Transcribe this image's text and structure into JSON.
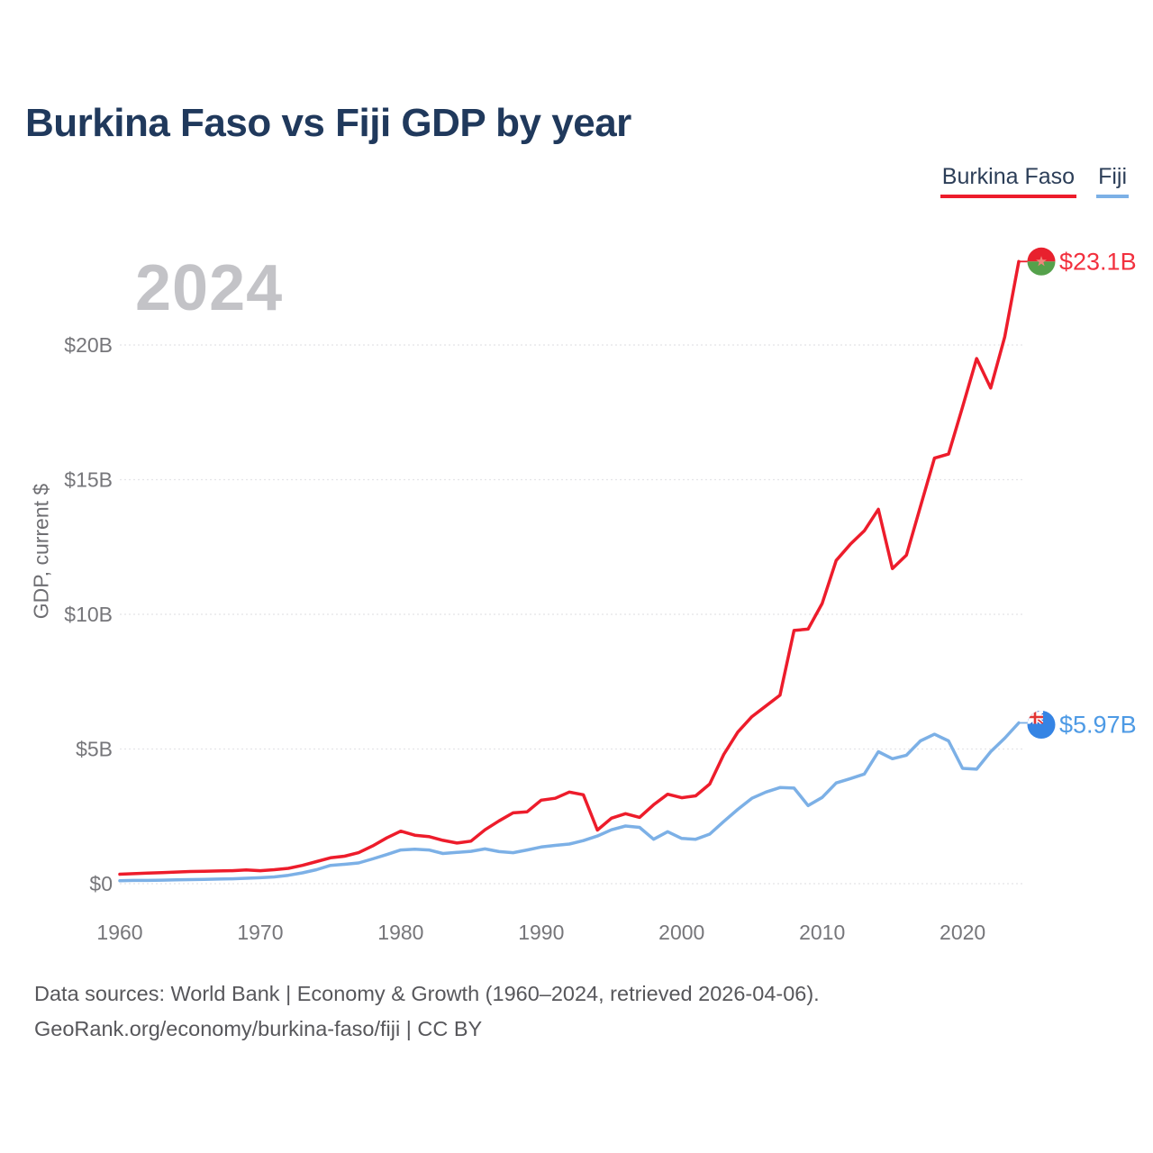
{
  "page": {
    "title": "Burkina Faso vs Fiji GDP by year",
    "footer": {
      "line1": "Data sources: World Bank | Economy & Growth (1960–2024, retrieved 2026-04-06).",
      "line2": "GeoRank.org/economy/burkina-faso/fiji | CC BY"
    }
  },
  "legend": {
    "items": [
      {
        "label": "Burkina Faso",
        "color": "#ed1c2b"
      },
      {
        "label": "Fiji",
        "color": "#7cb0e6"
      }
    ]
  },
  "chart_data": {
    "type": "line",
    "title": "Burkina Faso vs Fiji GDP by year",
    "xlabel": "",
    "ylabel": "GDP, current $",
    "unit": "billions of current US dollars",
    "watermark": "2024",
    "grid": true,
    "legend_position": "top-right",
    "x_start": 1960,
    "x_end": 2024,
    "x_ticks": [
      1960,
      1970,
      1980,
      1990,
      2000,
      2010,
      2020
    ],
    "y_ticks": [
      {
        "value": 0,
        "label": "$0"
      },
      {
        "value": 5,
        "label": "$5B"
      },
      {
        "value": 10,
        "label": "$10B"
      },
      {
        "value": 15,
        "label": "$15B"
      },
      {
        "value": 20,
        "label": "$20B"
      }
    ],
    "ylim": [
      0,
      23.5
    ],
    "series": [
      {
        "name": "Burkina Faso",
        "color": "#ed1c2b",
        "label_color": "#f2303e",
        "end_label": "$23.1B",
        "end_value_billions": 23.1,
        "flag": "burkina-faso",
        "values": [
          0.35,
          0.37,
          0.39,
          0.41,
          0.43,
          0.45,
          0.46,
          0.47,
          0.48,
          0.51,
          0.48,
          0.52,
          0.57,
          0.68,
          0.82,
          0.96,
          1.02,
          1.15,
          1.4,
          1.7,
          1.95,
          1.8,
          1.75,
          1.61,
          1.51,
          1.58,
          2.0,
          2.33,
          2.63,
          2.67,
          3.1,
          3.17,
          3.4,
          3.3,
          1.99,
          2.43,
          2.6,
          2.46,
          2.93,
          3.32,
          3.19,
          3.26,
          3.7,
          4.8,
          5.63,
          6.2,
          6.6,
          7.0,
          9.4,
          9.45,
          10.4,
          12.0,
          12.6,
          13.1,
          13.9,
          11.7,
          12.2,
          14.0,
          15.8,
          15.95,
          17.7,
          19.5,
          18.4,
          20.3,
          23.1
        ]
      },
      {
        "name": "Fiji",
        "color": "#7cb0e6",
        "label_color": "#4d9ae5",
        "end_label": "$5.97B",
        "end_value_billions": 5.97,
        "flag": "fiji",
        "values": [
          0.11,
          0.12,
          0.12,
          0.13,
          0.14,
          0.15,
          0.16,
          0.17,
          0.18,
          0.2,
          0.22,
          0.25,
          0.31,
          0.4,
          0.52,
          0.68,
          0.72,
          0.77,
          0.92,
          1.08,
          1.25,
          1.28,
          1.25,
          1.12,
          1.16,
          1.2,
          1.29,
          1.19,
          1.15,
          1.25,
          1.36,
          1.42,
          1.47,
          1.6,
          1.77,
          2.0,
          2.14,
          2.09,
          1.65,
          1.93,
          1.68,
          1.65,
          1.84,
          2.31,
          2.76,
          3.17,
          3.4,
          3.57,
          3.55,
          2.9,
          3.2,
          3.74,
          3.9,
          4.07,
          4.9,
          4.64,
          4.77,
          5.3,
          5.55,
          5.3,
          4.28,
          4.25,
          4.9,
          5.4,
          5.97
        ]
      }
    ]
  }
}
